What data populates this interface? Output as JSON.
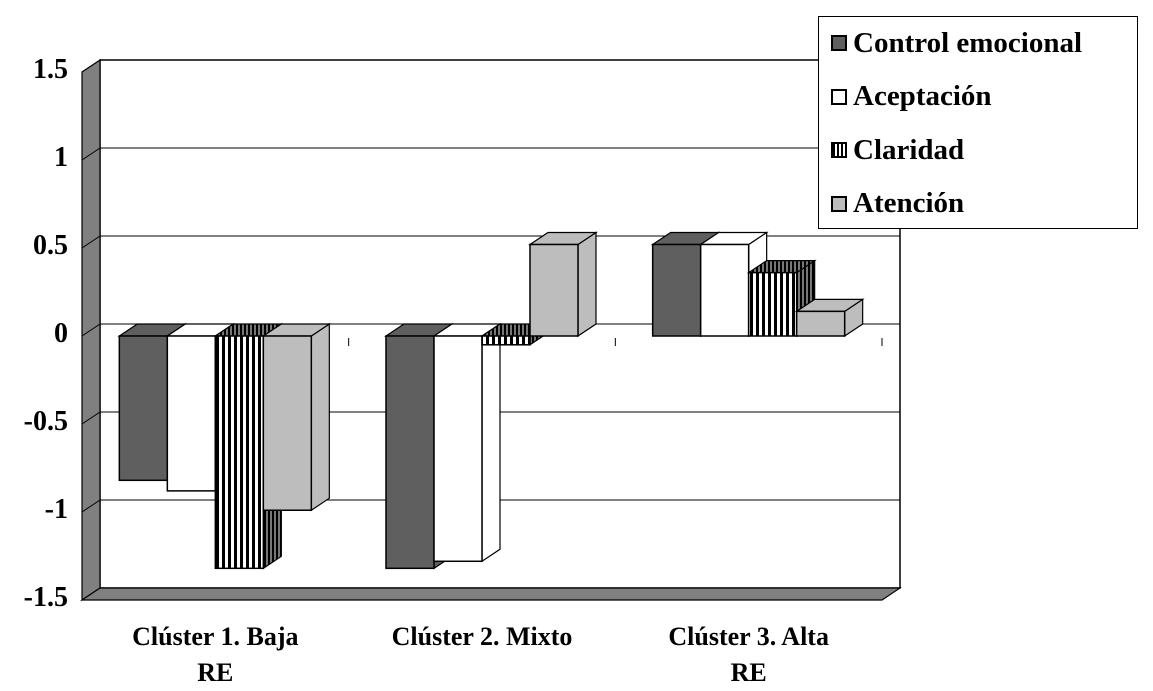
{
  "chart_data": {
    "type": "bar",
    "title": "",
    "xlabel": "",
    "ylabel": "",
    "ylim": [
      -1.5,
      1.5
    ],
    "yticks": [
      "1.5",
      "1",
      "0.5",
      "0",
      "-0.5",
      "-1",
      "-1.5"
    ],
    "ytick_values": [
      1.5,
      1,
      0.5,
      0,
      -0.5,
      -1,
      -1.5
    ],
    "categories": [
      [
        "Clúster 1. Baja",
        "RE"
      ],
      [
        "Clúster 2. Mixto"
      ],
      [
        "Clúster 3. Alta",
        "RE"
      ]
    ],
    "series": [
      {
        "name": "Control emocional",
        "values": [
          -0.82,
          -1.32,
          0.52
        ],
        "color": "#5f5f5f",
        "pattern": "solid"
      },
      {
        "name": "Aceptación",
        "values": [
          -0.88,
          -1.28,
          0.52
        ],
        "color": "#ffffff",
        "pattern": "solid"
      },
      {
        "name": "Claridad",
        "values": [
          -1.32,
          -0.05,
          0.36
        ],
        "color": "#ffffff",
        "pattern": "vertical-stripes"
      },
      {
        "name": "Atención",
        "values": [
          -0.99,
          0.52,
          0.14
        ],
        "color": "#bdbdbd",
        "pattern": "solid"
      }
    ],
    "grid": true,
    "legend_position": "top-right",
    "style": "3d-column"
  }
}
